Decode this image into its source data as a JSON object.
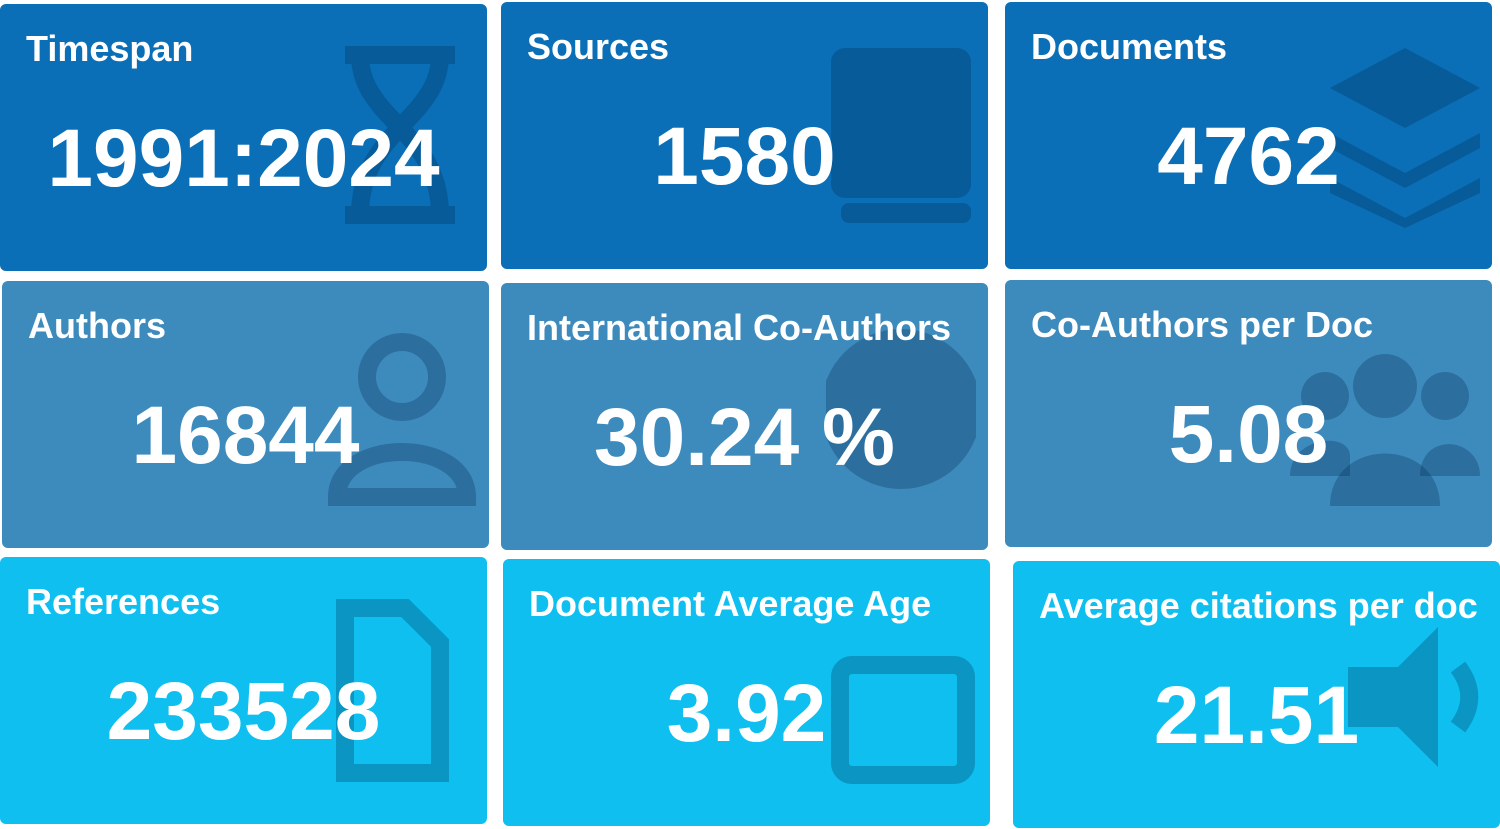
{
  "boxes": [
    {
      "title": "Timespan",
      "value": "1991:2024"
    },
    {
      "title": "Sources",
      "value": "1580"
    },
    {
      "title": "Documents",
      "value": "4762"
    },
    {
      "title": "Authors",
      "value": "16844"
    },
    {
      "title": "International Co-Authors",
      "value": "30.24 %"
    },
    {
      "title": "Co-Authors per Doc",
      "value": "5.08"
    },
    {
      "title": "References",
      "value": "233528"
    },
    {
      "title": "Document Average Age",
      "value": "3.92"
    },
    {
      "title": "Average citations per doc",
      "value": "21.51"
    }
  ]
}
